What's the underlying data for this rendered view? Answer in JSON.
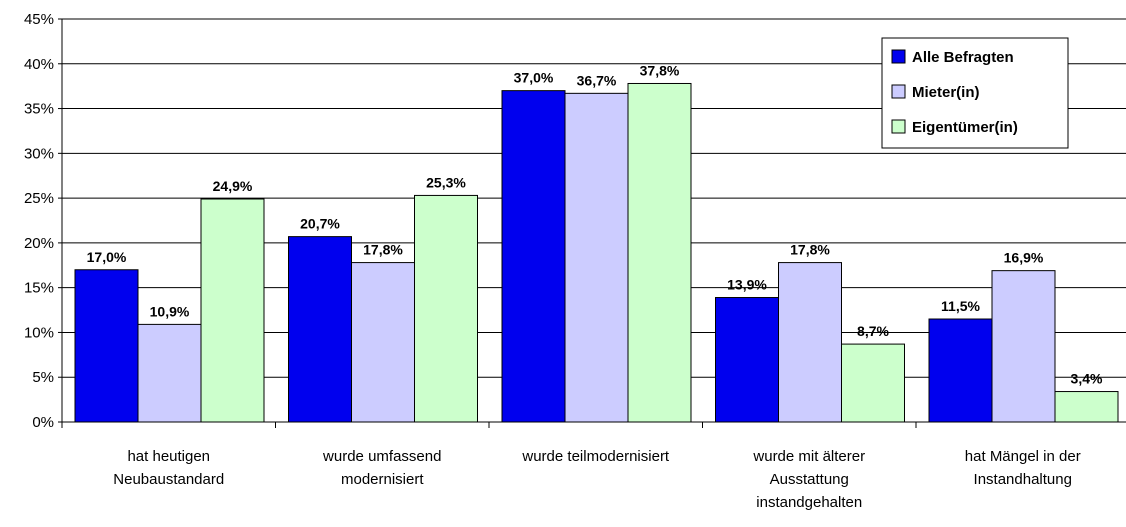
{
  "chart_data": {
    "type": "bar",
    "categories": [
      [
        "hat heutigen",
        "Neubaustandard"
      ],
      [
        "wurde umfassend",
        "modernisiert"
      ],
      [
        "wurde teilmodernisiert"
      ],
      [
        "wurde mit älterer",
        "Ausstattung",
        "instandgehalten"
      ],
      [
        "hat Mängel in der",
        "Instandhaltung"
      ]
    ],
    "series": [
      {
        "name": "Alle Befragten",
        "color": "#0000ee",
        "values": [
          17.0,
          20.7,
          37.0,
          13.9,
          11.5
        ],
        "labels": [
          "17,0%",
          "20,7%",
          "37,0%",
          "13,9%",
          "11,5%"
        ]
      },
      {
        "name": "Mieter(in)",
        "color": "#ccccff",
        "values": [
          10.9,
          17.8,
          36.7,
          17.8,
          16.9
        ],
        "labels": [
          "10,9%",
          "17,8%",
          "36,7%",
          "17,8%",
          "16,9%"
        ]
      },
      {
        "name": "Eigentümer(in)",
        "color": "#ccffcc",
        "values": [
          24.9,
          25.3,
          37.8,
          8.7,
          3.4
        ],
        "labels": [
          "24,9%",
          "25,3%",
          "37,8%",
          "8,7%",
          "3,4%"
        ]
      }
    ],
    "yticks": [
      "0%",
      "5%",
      "10%",
      "15%",
      "20%",
      "25%",
      "30%",
      "35%",
      "40%",
      "45%"
    ],
    "ylim": [
      0,
      45
    ],
    "grid": true,
    "legend_position": "top-right"
  }
}
